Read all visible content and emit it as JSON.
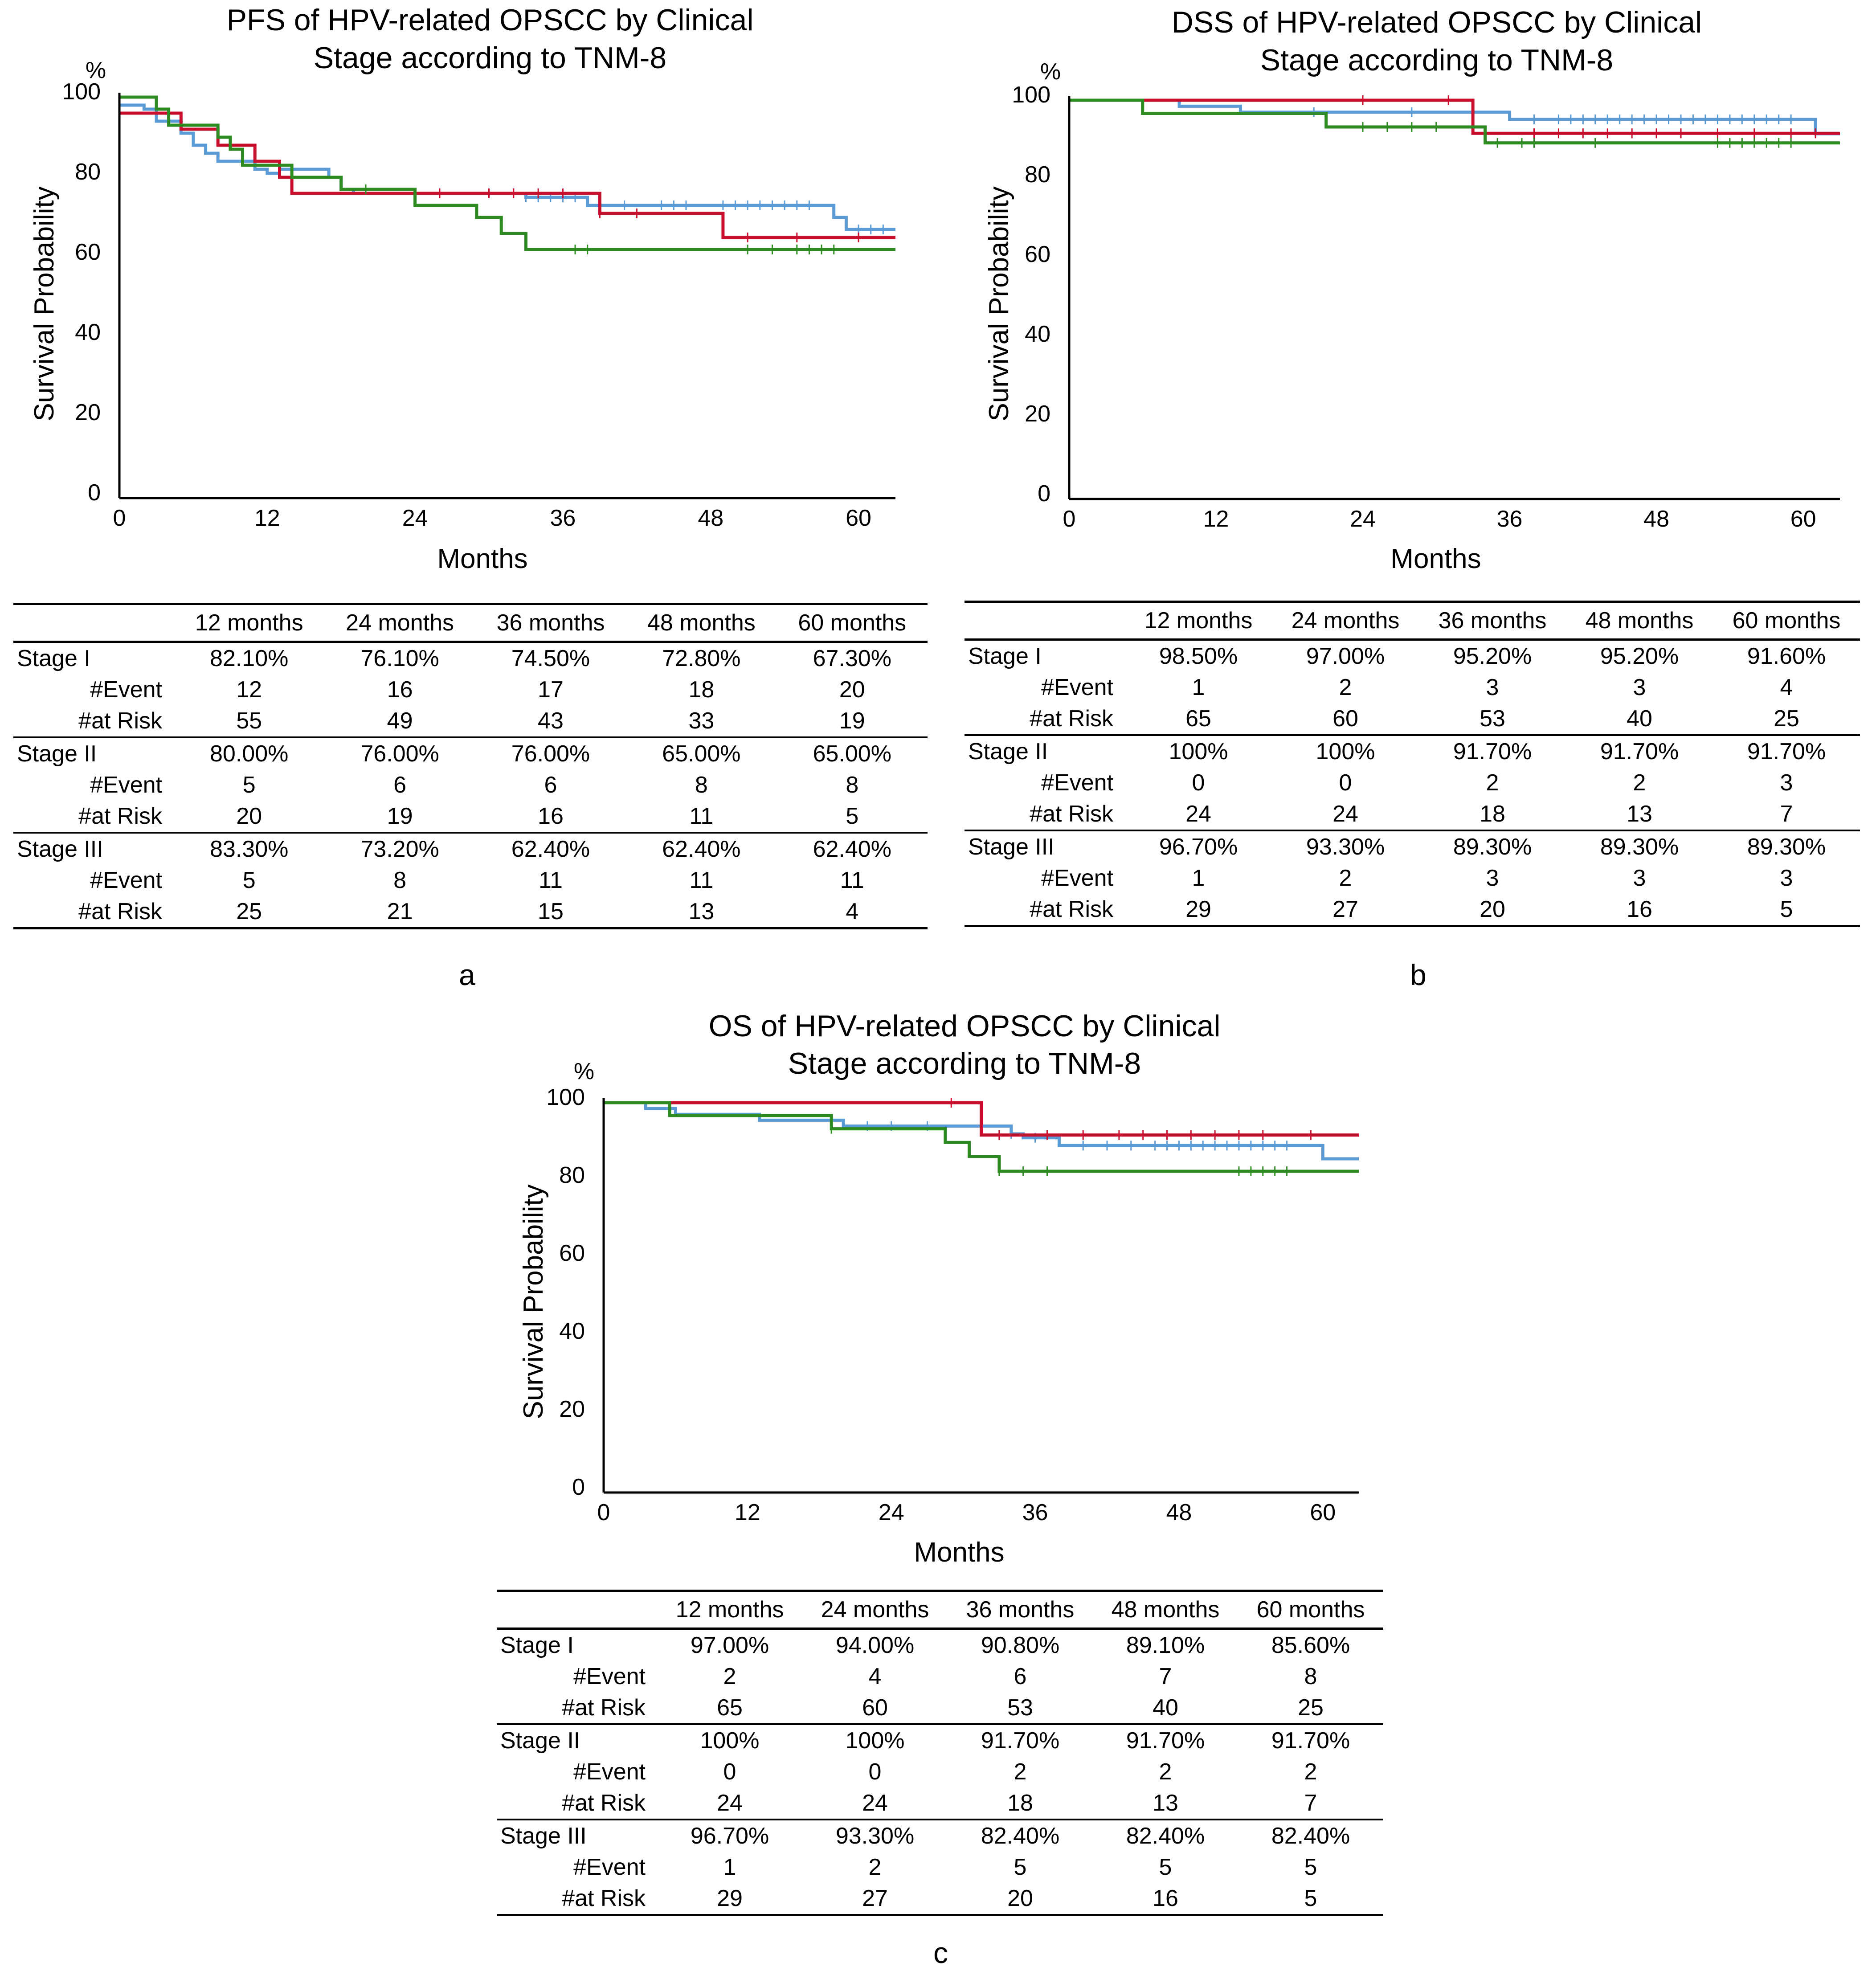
{
  "colors": {
    "stage_i": "#5b9bd5",
    "stage_ii": "#c8102e",
    "stage_iii": "#2e8b22",
    "axis": "#000000"
  },
  "chart_data": [
    {
      "id": "a",
      "panel_label": "a",
      "type": "line",
      "subtype": "kaplan-meier step",
      "title_line1": "PFS of HPV-related OPSCC by Clinical",
      "title_line2": "Stage according to TNM-8",
      "xlabel": "Months",
      "ylabel": "Survival Probability",
      "yunit": "%",
      "xlim": [
        0,
        63
      ],
      "ylim": [
        0,
        100
      ],
      "xticks": [
        0,
        12,
        24,
        36,
        48,
        60
      ],
      "yticks": [
        0,
        20,
        40,
        60,
        80,
        100
      ],
      "series": [
        {
          "name": "Stage I",
          "color": "#5b9bd5",
          "steps": [
            [
              0,
              98
            ],
            [
              2,
              97
            ],
            [
              3,
              94
            ],
            [
              5,
              91
            ],
            [
              6,
              88
            ],
            [
              7,
              86
            ],
            [
              8,
              84
            ],
            [
              11,
              82
            ],
            [
              12,
              81
            ],
            [
              13,
              82
            ],
            [
              17,
              80
            ],
            [
              18,
              77
            ],
            [
              19,
              76
            ],
            [
              24,
              76
            ],
            [
              32,
              76
            ],
            [
              33,
              75
            ],
            [
              38,
              73
            ],
            [
              57,
              73
            ],
            [
              58,
              70
            ],
            [
              59,
              67
            ],
            [
              63,
              67
            ]
          ],
          "censor": [
            33,
            34,
            35,
            36,
            37,
            39,
            41,
            44,
            45,
            46,
            49,
            50,
            51,
            52,
            53,
            54,
            55,
            56,
            60,
            61,
            62
          ]
        },
        {
          "name": "Stage II",
          "color": "#c8102e",
          "steps": [
            [
              0,
              96
            ],
            [
              3,
              96
            ],
            [
              5,
              92
            ],
            [
              7,
              92
            ],
            [
              8,
              88
            ],
            [
              10,
              88
            ],
            [
              11,
              84
            ],
            [
              12,
              84
            ],
            [
              13,
              80
            ],
            [
              14,
              76
            ],
            [
              24,
              76
            ],
            [
              38,
              76
            ],
            [
              39,
              71
            ],
            [
              48,
              71
            ],
            [
              49,
              65
            ],
            [
              63,
              65
            ]
          ],
          "censor": [
            26,
            30,
            32,
            34,
            36,
            39,
            42,
            51,
            55,
            60
          ]
        },
        {
          "name": "Stage III",
          "color": "#2e8b22",
          "steps": [
            [
              0,
              100
            ],
            [
              2,
              100
            ],
            [
              3,
              97
            ],
            [
              4,
              93
            ],
            [
              8,
              90
            ],
            [
              9,
              87
            ],
            [
              10,
              83
            ],
            [
              14,
              80
            ],
            [
              17,
              80
            ],
            [
              18,
              77
            ],
            [
              23,
              77
            ],
            [
              24,
              73
            ],
            [
              28,
              73
            ],
            [
              29,
              70
            ],
            [
              30,
              70
            ],
            [
              31,
              66
            ],
            [
              32,
              66
            ],
            [
              33,
              62
            ],
            [
              63,
              62
            ]
          ],
          "censor": [
            20,
            37,
            38,
            51,
            53,
            55,
            56,
            57,
            58
          ]
        }
      ],
      "risk_table": {
        "columns": [
          "12 months",
          "24 months",
          "36 months",
          "48 months",
          "60 months"
        ],
        "groups": [
          {
            "stage": "Stage I",
            "survival": [
              "82.10%",
              "76.10%",
              "74.50%",
              "72.80%",
              "67.30%"
            ],
            "events": [
              "12",
              "16",
              "17",
              "18",
              "20"
            ],
            "at_risk": [
              "55",
              "49",
              "43",
              "33",
              "19"
            ]
          },
          {
            "stage": "Stage II",
            "survival": [
              "80.00%",
              "76.00%",
              "76.00%",
              "65.00%",
              "65.00%"
            ],
            "events": [
              "5",
              "6",
              "6",
              "8",
              "8"
            ],
            "at_risk": [
              "20",
              "19",
              "16",
              "11",
              "5"
            ]
          },
          {
            "stage": "Stage III",
            "survival": [
              "83.30%",
              "73.20%",
              "62.40%",
              "62.40%",
              "62.40%"
            ],
            "events": [
              "5",
              "8",
              "11",
              "11",
              "11"
            ],
            "at_risk": [
              "25",
              "21",
              "15",
              "13",
              "4"
            ]
          }
        ]
      }
    },
    {
      "id": "b",
      "panel_label": "b",
      "type": "line",
      "subtype": "kaplan-meier step",
      "title_line1": "DSS of HPV-related OPSCC by Clinical",
      "title_line2": "Stage according to TNM-8",
      "xlabel": "Months",
      "ylabel": "Survival Probability",
      "yunit": "%",
      "xlim": [
        0,
        63
      ],
      "ylim": [
        0,
        100
      ],
      "xticks": [
        0,
        12,
        24,
        36,
        48,
        60
      ],
      "yticks": [
        0,
        20,
        40,
        60,
        80,
        100
      ],
      "series": [
        {
          "name": "Stage I",
          "color": "#5b9bd5",
          "steps": [
            [
              0,
              100
            ],
            [
              8,
              100
            ],
            [
              9,
              98.5
            ],
            [
              13,
              98.5
            ],
            [
              14,
              97
            ],
            [
              35,
              97
            ],
            [
              36,
              95.2
            ],
            [
              60,
              95.2
            ],
            [
              61,
              91.6
            ],
            [
              63,
              91.6
            ]
          ],
          "censor": [
            20,
            28,
            33,
            38,
            40,
            41,
            42,
            43,
            44,
            45,
            46,
            47,
            48,
            49,
            50,
            51,
            52,
            53,
            54,
            55,
            56,
            57,
            58,
            59
          ]
        },
        {
          "name": "Stage II",
          "color": "#c8102e",
          "steps": [
            [
              0,
              100
            ],
            [
              32,
              100
            ],
            [
              33,
              91.7
            ],
            [
              63,
              91.7
            ]
          ],
          "censor": [
            24,
            31,
            38,
            40,
            42,
            44,
            46,
            48,
            50,
            53,
            56,
            59,
            61
          ]
        },
        {
          "name": "Stage III",
          "color": "#2e8b22",
          "steps": [
            [
              0,
              100
            ],
            [
              5,
              100
            ],
            [
              6,
              96.7
            ],
            [
              20,
              96.7
            ],
            [
              21,
              93.3
            ],
            [
              33,
              93.3
            ],
            [
              34,
              89.3
            ],
            [
              63,
              89.3
            ]
          ],
          "censor": [
            24,
            26,
            28,
            30,
            35,
            37,
            38,
            43,
            53,
            54,
            55,
            56,
            57,
            58,
            59
          ]
        }
      ],
      "risk_table": {
        "columns": [
          "12 months",
          "24 months",
          "36 months",
          "48 months",
          "60 months"
        ],
        "groups": [
          {
            "stage": "Stage I",
            "survival": [
              "98.50%",
              "97.00%",
              "95.20%",
              "95.20%",
              "91.60%"
            ],
            "events": [
              "1",
              "2",
              "3",
              "3",
              "4"
            ],
            "at_risk": [
              "65",
              "60",
              "53",
              "40",
              "25"
            ]
          },
          {
            "stage": "Stage II",
            "survival": [
              "100%",
              "100%",
              "91.70%",
              "91.70%",
              "91.70%"
            ],
            "events": [
              "0",
              "0",
              "2",
              "2",
              "3"
            ],
            "at_risk": [
              "24",
              "24",
              "18",
              "13",
              "7"
            ]
          },
          {
            "stage": "Stage III",
            "survival": [
              "96.70%",
              "93.30%",
              "89.30%",
              "89.30%",
              "89.30%"
            ],
            "events": [
              "1",
              "2",
              "3",
              "3",
              "3"
            ],
            "at_risk": [
              "29",
              "27",
              "20",
              "16",
              "5"
            ]
          }
        ]
      }
    },
    {
      "id": "c",
      "panel_label": "c",
      "type": "line",
      "subtype": "kaplan-meier step",
      "title_line1": "OS of HPV-related OPSCC by Clinical",
      "title_line2": "Stage according to TNM-8",
      "xlabel": "Months",
      "ylabel": "Survival Probability",
      "yunit": "%",
      "xlim": [
        0,
        63
      ],
      "ylim": [
        0,
        100
      ],
      "xticks": [
        0,
        12,
        24,
        36,
        48,
        60
      ],
      "yticks": [
        0,
        20,
        40,
        60,
        80,
        100
      ],
      "series": [
        {
          "name": "Stage I",
          "color": "#5b9bd5",
          "steps": [
            [
              0,
              100
            ],
            [
              3,
              100
            ],
            [
              3.5,
              98.5
            ],
            [
              5,
              98.5
            ],
            [
              6,
              97
            ],
            [
              12,
              97
            ],
            [
              13,
              95.5
            ],
            [
              19,
              95.5
            ],
            [
              20,
              94
            ],
            [
              33,
              94
            ],
            [
              34,
              92
            ],
            [
              35,
              91
            ],
            [
              37,
              91
            ],
            [
              38,
              89
            ],
            [
              59,
              89
            ],
            [
              60,
              85.6
            ],
            [
              63,
              85.6
            ]
          ],
          "censor": [
            22,
            24,
            27,
            34,
            36,
            40,
            42,
            44,
            46,
            47,
            48,
            49,
            50,
            51,
            52,
            53,
            54,
            55,
            56,
            57
          ]
        },
        {
          "name": "Stage II",
          "color": "#c8102e",
          "steps": [
            [
              0,
              100
            ],
            [
              31,
              100
            ],
            [
              31.5,
              91.7
            ],
            [
              63,
              91.7
            ]
          ],
          "censor": [
            29,
            33,
            37,
            40,
            43,
            45,
            47,
            49,
            51,
            53,
            55,
            59
          ]
        },
        {
          "name": "Stage III",
          "color": "#2e8b22",
          "steps": [
            [
              0,
              100
            ],
            [
              5,
              100
            ],
            [
              5.5,
              96.7
            ],
            [
              18,
              96.7
            ],
            [
              19,
              93.3
            ],
            [
              28,
              93.3
            ],
            [
              28.5,
              89.8
            ],
            [
              30,
              89.8
            ],
            [
              30.5,
              86.2
            ],
            [
              32,
              86.2
            ],
            [
              33,
              82.4
            ],
            [
              63,
              82.4
            ]
          ],
          "censor": [
            19,
            33,
            35,
            37,
            53,
            54,
            55,
            56,
            57
          ]
        }
      ],
      "risk_table": {
        "columns": [
          "12 months",
          "24 months",
          "36 months",
          "48 months",
          "60 months"
        ],
        "groups": [
          {
            "stage": "Stage I",
            "survival": [
              "97.00%",
              "94.00%",
              "90.80%",
              "89.10%",
              "85.60%"
            ],
            "events": [
              "2",
              "4",
              "6",
              "7",
              "8"
            ],
            "at_risk": [
              "65",
              "60",
              "53",
              "40",
              "25"
            ]
          },
          {
            "stage": "Stage II",
            "survival": [
              "100%",
              "100%",
              "91.70%",
              "91.70%",
              "91.70%"
            ],
            "events": [
              "0",
              "0",
              "2",
              "2",
              "2"
            ],
            "at_risk": [
              "24",
              "24",
              "18",
              "13",
              "7"
            ]
          },
          {
            "stage": "Stage III",
            "survival": [
              "96.70%",
              "93.30%",
              "82.40%",
              "82.40%",
              "82.40%"
            ],
            "events": [
              "1",
              "2",
              "5",
              "5",
              "5"
            ],
            "at_risk": [
              "29",
              "27",
              "20",
              "16",
              "5"
            ]
          }
        ]
      }
    }
  ],
  "row_labels": {
    "events": "#Event",
    "at_risk": "#at Risk"
  }
}
